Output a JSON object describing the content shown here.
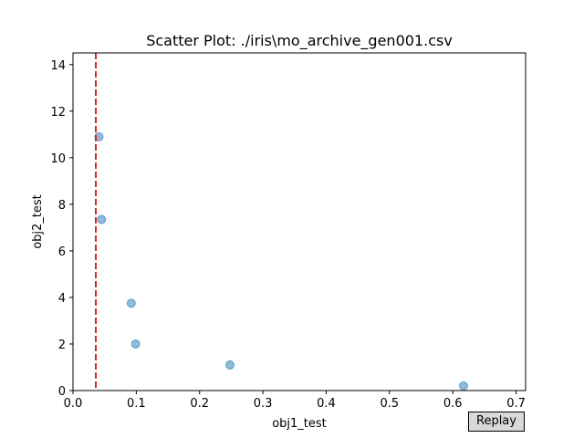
{
  "chart_data": {
    "type": "scatter",
    "title": "Scatter Plot: ./iris\\mo_archive_gen001.csv",
    "xlabel": "obj1_test",
    "ylabel": "obj2_test",
    "xlim": [
      0.0,
      0.715
    ],
    "ylim": [
      0,
      14.5
    ],
    "xticks": [
      "0.0",
      "0.1",
      "0.2",
      "0.3",
      "0.4",
      "0.5",
      "0.6",
      "0.7"
    ],
    "yticks": [
      "0",
      "2",
      "4",
      "6",
      "8",
      "10",
      "12",
      "14"
    ],
    "grid": false,
    "series": [
      {
        "color": "#1f77b4",
        "points": [
          {
            "x": 0.041,
            "y": 10.9
          },
          {
            "x": 0.045,
            "y": 7.35
          },
          {
            "x": 0.092,
            "y": 3.75
          },
          {
            "x": 0.099,
            "y": 2.0
          },
          {
            "x": 0.248,
            "y": 1.1
          },
          {
            "x": 0.617,
            "y": 0.2
          }
        ]
      }
    ],
    "vline": {
      "x": 0.036,
      "color": "#d62728",
      "style": "dashed"
    }
  },
  "controls": {
    "replay_label": "Replay"
  }
}
